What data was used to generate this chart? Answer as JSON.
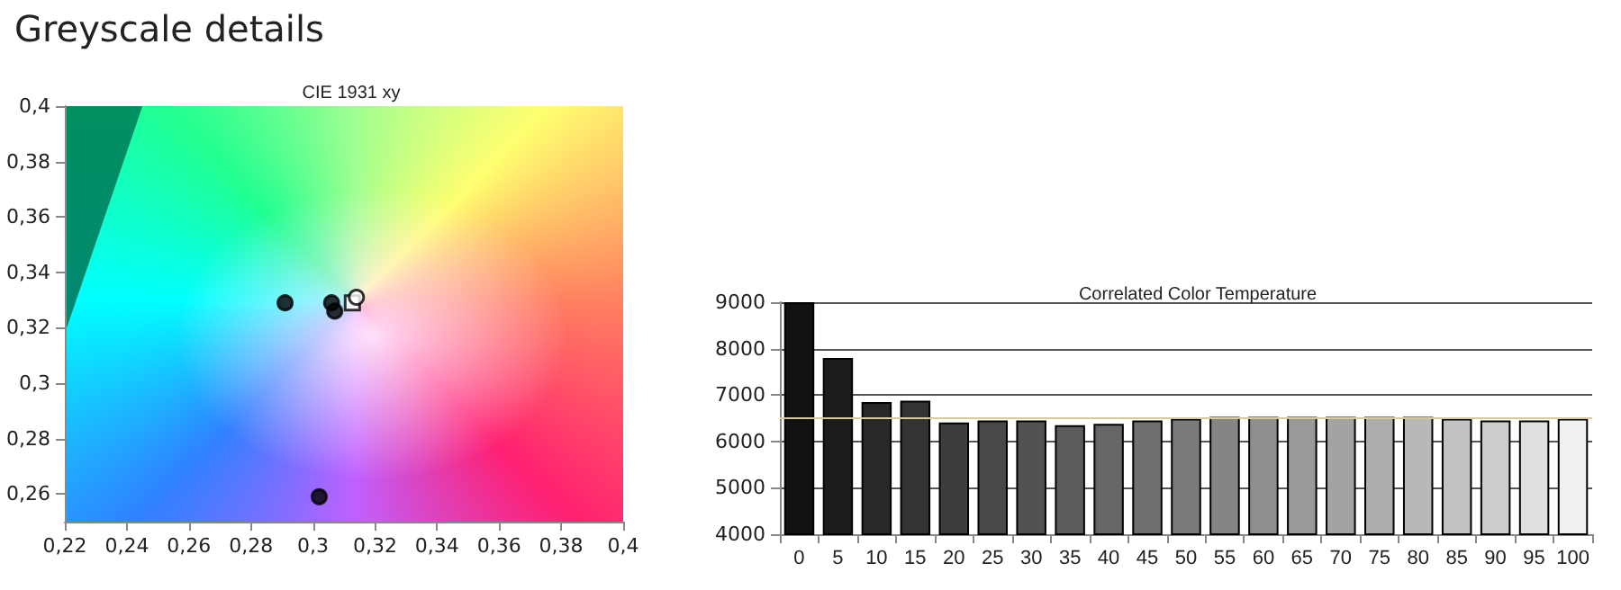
{
  "chart_data": [
    {
      "type": "scatter",
      "title": "CIE 1931 xy",
      "annotations": [
        "Greyscale details"
      ],
      "xlim": [
        0.22,
        0.4
      ],
      "xticks": [
        {
          "value": 0.22,
          "label": "0,22"
        },
        {
          "value": 0.24,
          "label": "0,24"
        },
        {
          "value": 0.26,
          "label": "0,26"
        },
        {
          "value": 0.28,
          "label": "0,28"
        },
        {
          "value": 0.3,
          "label": "0,3"
        },
        {
          "value": 0.32,
          "label": "0,32"
        },
        {
          "value": 0.34,
          "label": "0,34"
        },
        {
          "value": 0.36,
          "label": "0,36"
        },
        {
          "value": 0.38,
          "label": "0,38"
        },
        {
          "value": 0.4,
          "label": "0,4"
        }
      ],
      "ylim": [
        0.25,
        0.4
      ],
      "yticks": [
        {
          "value": 0.26,
          "label": "0,26"
        },
        {
          "value": 0.28,
          "label": "0,28"
        },
        {
          "value": 0.3,
          "label": "0,3"
        },
        {
          "value": 0.32,
          "label": "0,32"
        },
        {
          "value": 0.34,
          "label": "0,34"
        },
        {
          "value": 0.36,
          "label": "0,36"
        },
        {
          "value": 0.38,
          "label": "0,38"
        },
        {
          "value": 0.4,
          "label": "0,4"
        }
      ],
      "grid": false,
      "series": [
        {
          "color": "#000000",
          "marker": "circle",
          "x": [
            0.291,
            0.306,
            0.307,
            0.302
          ],
          "values": [
            0.329,
            0.329,
            0.326,
            0.259
          ]
        },
        {
          "color": "#ffffff",
          "marker": "square",
          "x": [
            0.3127
          ],
          "values": [
            0.329
          ]
        },
        {
          "color": "#ffffff",
          "marker": "circle",
          "x": [
            0.314
          ],
          "values": [
            0.331
          ]
        }
      ]
    },
    {
      "type": "bar",
      "title": "Correlated Color Temperature",
      "categories": [
        "0",
        "5",
        "10",
        "15",
        "20",
        "25",
        "30",
        "35",
        "40",
        "45",
        "50",
        "55",
        "60",
        "65",
        "70",
        "75",
        "80",
        "85",
        "90",
        "95",
        "100"
      ],
      "values": [
        9000,
        7800,
        6850,
        6880,
        6410,
        6450,
        6450,
        6350,
        6380,
        6450,
        6490,
        6530,
        6530,
        6530,
        6530,
        6530,
        6530,
        6490,
        6450,
        6450,
        6490
      ],
      "colors": [
        "#111111",
        "#1c1c1c",
        "#282828",
        "#333333",
        "#3d3d3d",
        "#484848",
        "#525252",
        "#5c5c5c",
        "#666666",
        "#707070",
        "#7a7a7a",
        "#858585",
        "#8f8f8f",
        "#999999",
        "#a3a3a3",
        "#adadad",
        "#b8b8b8",
        "#c2c2c2",
        "#cccccc",
        "#e0e0e0",
        "#f0f0f0"
      ],
      "ylim": [
        4000,
        9000
      ],
      "yticks": [
        4000,
        5000,
        6000,
        7000,
        8000,
        9000
      ],
      "grid": "y",
      "ref_lines": [
        {
          "axis": "y",
          "value": 6500,
          "color": "#d8c8a0"
        }
      ]
    }
  ]
}
